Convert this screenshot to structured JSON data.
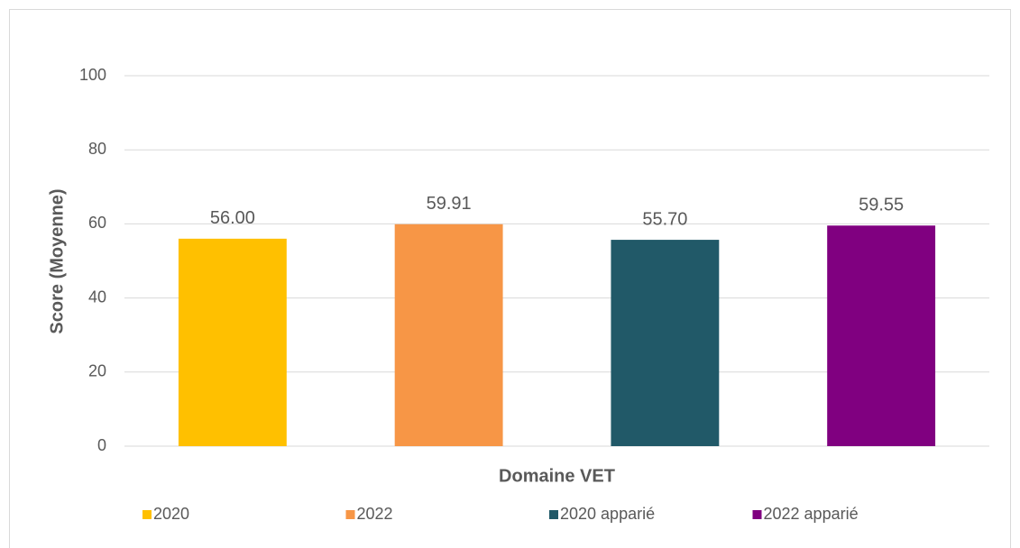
{
  "chart_data": {
    "type": "bar",
    "categories": [
      "Domaine VET"
    ],
    "ylabel": "Score (Moyenne)",
    "series": [
      {
        "name": "2020",
        "color": "#FFC000",
        "values": [
          56
        ],
        "value_labels": [
          "56.00"
        ]
      },
      {
        "name": "2022",
        "color": "#F79646",
        "values": [
          59.91
        ],
        "value_labels": [
          "59.91"
        ]
      },
      {
        "name": "2020 apparié",
        "color": "#215968",
        "values": [
          55.7
        ],
        "value_labels": [
          "55.70"
        ]
      },
      {
        "name": "2022 apparié",
        "color": "#800080",
        "values": [
          59.55
        ],
        "value_labels": [
          "59.55"
        ]
      }
    ],
    "ylim": [
      0,
      100
    ],
    "yticks": [
      0,
      20,
      40,
      60,
      80,
      100
    ],
    "grid": true,
    "legend": "bottom"
  }
}
